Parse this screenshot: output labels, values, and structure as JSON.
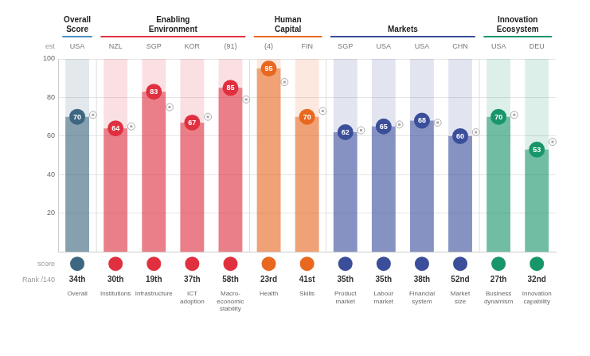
{
  "chart_data": {
    "type": "bar",
    "categories": [
      "Overall",
      "Institutions",
      "Infrastructure",
      "ICT\nadoption",
      "Macro-\neconomic\nstability",
      "Health",
      "Skills",
      "Product\nmarket",
      "Labour\nmarket",
      "Financial\nsystem",
      "Market\nsize",
      "Business\ndynamism",
      "Innovation\ncapability"
    ],
    "series": [
      {
        "values": [
          70,
          64,
          83,
          67,
          85,
          95,
          70,
          62,
          65,
          68,
          60,
          70,
          53
        ],
        "colors": [
          "#3d6680",
          "#e03040",
          "#e03040",
          "#e03040",
          "#e03040",
          "#e86820",
          "#e86820",
          "#3a4e9a",
          "#3a4e9a",
          "#3a4e9a",
          "#3a4e9a",
          "#18966a",
          "#18966a"
        ],
        "data_labels": true
      },
      {
        "type": "scatter",
        "values": [
          71,
          65,
          75,
          70,
          79,
          88,
          73,
          63,
          66,
          67,
          62,
          71,
          57
        ],
        "color": "#aaaaaa",
        "marker": "circle"
      }
    ],
    "groups": [
      {
        "name": "Overall\nScore",
        "color": "#4a90c4",
        "indices": [
          0
        ]
      },
      {
        "name": "Enabling\nEnvironment",
        "color": "#e03040",
        "indices": [
          1,
          2,
          3,
          4
        ]
      },
      {
        "name": "Human\nCapital",
        "color": "#e86820",
        "indices": [
          5,
          6
        ]
      },
      {
        "name": "Markets",
        "color": "#3a4e9a",
        "indices": [
          7,
          8,
          9,
          10
        ]
      },
      {
        "name": "Innovation\nEcosystem",
        "color": "#18966a",
        "indices": [
          11,
          12
        ]
      }
    ],
    "country_labels": [
      "USA",
      "NZL",
      "SGP",
      "KOR",
      "(91)",
      "(4)",
      "FIN",
      "SGP",
      "USA",
      "USA",
      "CHN",
      "USA",
      "DEU"
    ],
    "ranks": [
      "34th",
      "30th",
      "19th",
      "37th",
      "58th",
      "23rd",
      "41st",
      "35th",
      "35th",
      "38th",
      "52nd",
      "27th",
      "32nd"
    ],
    "row_labels": {
      "country": "est",
      "icon": "score",
      "rank": "Rank /140"
    },
    "ylim": [
      0,
      100
    ],
    "yticks": [
      20,
      40,
      60,
      80,
      100
    ],
    "grid": true
  }
}
